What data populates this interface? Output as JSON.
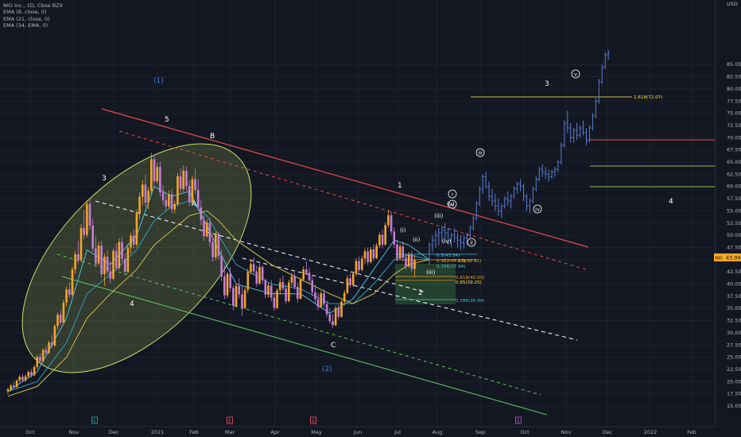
{
  "legend": {
    "title": "NIO Inc., 1D, Cboe BZX",
    "ema_lines": [
      "EMA (8, close, 0)",
      "EMA (21, close, 0)",
      "EMA (34, EMA, 0)"
    ]
  },
  "currency": "USD",
  "price_badge": "43.99",
  "symbol_badge": "NIO",
  "colors": {
    "background": "#131722",
    "candle_up": "#f5a623",
    "candle_down": "#c77dd9",
    "candle_late": "#5b7fd6",
    "ema_fast": "#4fc3d9",
    "ema_slow": "#c9c04a",
    "ellipse": "#c8e06a",
    "red_line": "#e84b4b",
    "white_dash": "#ffffff",
    "green_line": "#5cc35c"
  },
  "chart_data": {
    "type": "candlestick",
    "title": "NIO Inc., 1D, Cboe BZX",
    "y_axis": {
      "min": 13,
      "max": 88,
      "ticks": [
        15,
        17.5,
        20,
        22.5,
        25,
        27.5,
        30,
        32.5,
        35,
        37.5,
        40,
        42.5,
        45,
        47.5,
        50,
        52.5,
        55,
        57.5,
        60,
        62.5,
        65,
        67.5,
        70,
        72.5,
        75,
        77.5,
        80,
        82.5,
        85
      ]
    },
    "x_axis": {
      "ticks": [
        "Oct",
        "Nov",
        "Dec",
        "2021",
        "Feb",
        "Mar",
        "Apr",
        "May",
        "Jun",
        "Jul",
        "Aug",
        "Sep",
        "Oct",
        "Nov",
        "Dec",
        "2022",
        "Feb"
      ]
    },
    "candles": [
      [
        18,
        18.8,
        17.4,
        18.4
      ],
      [
        18.4,
        19.6,
        18,
        19.2
      ],
      [
        19.2,
        20,
        18.6,
        18.9
      ],
      [
        18.9,
        20.5,
        18.5,
        20.2
      ],
      [
        20.2,
        21.4,
        19.8,
        21
      ],
      [
        21,
        21.6,
        19.9,
        20.3
      ],
      [
        20.3,
        21.5,
        20,
        21.1
      ],
      [
        21.1,
        22.3,
        20.8,
        22
      ],
      [
        22,
        22.6,
        20.9,
        21.3
      ],
      [
        21.3,
        23.4,
        21.1,
        23
      ],
      [
        23,
        25.5,
        22.6,
        25.1
      ],
      [
        25.1,
        25.8,
        23.8,
        24.2
      ],
      [
        24.2,
        26.9,
        24,
        26.5
      ],
      [
        26.5,
        27.3,
        25.4,
        25.9
      ],
      [
        25.9,
        28.4,
        25.6,
        28
      ],
      [
        28,
        29.5,
        26.9,
        27.4
      ],
      [
        27.4,
        31.8,
        27.1,
        31.4
      ],
      [
        31.4,
        34.2,
        30.6,
        33.7
      ],
      [
        33.7,
        34.6,
        31.6,
        32.1
      ],
      [
        32.1,
        36.8,
        31.9,
        36.2
      ],
      [
        36.2,
        39.5,
        35.4,
        38.9
      ],
      [
        38.9,
        40.4,
        37.2,
        37.8
      ],
      [
        37.8,
        43.6,
        37.5,
        43
      ],
      [
        43,
        46.8,
        42.1,
        46.1
      ],
      [
        46.1,
        48.9,
        44.2,
        44.9
      ],
      [
        44.9,
        52.3,
        44.5,
        51.5
      ],
      [
        51.5,
        55.1,
        49.2,
        50.1
      ],
      [
        50.1,
        57.2,
        49.6,
        56.4
      ],
      [
        56.4,
        57.5,
        51.1,
        52
      ],
      [
        52,
        53.4,
        46.6,
        47.3
      ],
      [
        47.3,
        49.8,
        43.4,
        44.2
      ],
      [
        44.2,
        48.7,
        43.8,
        47.9
      ],
      [
        47.9,
        48.9,
        41.3,
        42
      ],
      [
        42,
        46.3,
        39.6,
        45.6
      ],
      [
        45.6,
        46.9,
        41.9,
        42.6
      ],
      [
        42.6,
        44.6,
        40.1,
        41.1
      ],
      [
        41.1,
        47.3,
        40.8,
        46.8
      ],
      [
        46.8,
        48.3,
        42.7,
        43.3
      ],
      [
        43.3,
        49.4,
        42.8,
        48.6
      ],
      [
        48.6,
        49.6,
        44.5,
        45.2
      ],
      [
        45.2,
        46.3,
        41.8,
        42.5
      ],
      [
        42.5,
        48.3,
        42.2,
        47.5
      ],
      [
        47.5,
        50.6,
        46.2,
        49.9
      ],
      [
        49.9,
        51.3,
        47.3,
        48.1
      ],
      [
        48.1,
        55.3,
        47.5,
        54.6
      ],
      [
        54.6,
        58.8,
        53.3,
        57.9
      ],
      [
        57.9,
        61.3,
        56.1,
        60.4
      ],
      [
        60.4,
        62.4,
        55.8,
        56.7
      ],
      [
        56.7,
        59.8,
        55.4,
        59.1
      ],
      [
        59.1,
        66.9,
        58.5,
        65.6
      ],
      [
        65.6,
        66.5,
        60.2,
        61.1
      ],
      [
        61.1,
        64.9,
        60.6,
        64
      ],
      [
        64,
        65.1,
        57.9,
        58.8
      ],
      [
        58.8,
        60.3,
        56.3,
        57.2
      ],
      [
        57.2,
        58.6,
        55.1,
        55.9
      ],
      [
        55.9,
        59.2,
        55.4,
        58.4
      ],
      [
        58.4,
        59.5,
        54.5,
        55.3
      ],
      [
        55.3,
        57.1,
        54.4,
        56.4
      ],
      [
        56.4,
        62.8,
        55.9,
        62.1
      ],
      [
        62.1,
        63.7,
        58.7,
        59.5
      ],
      [
        59.5,
        64.3,
        58.9,
        63.2
      ],
      [
        63.2,
        64.1,
        59.2,
        60.1
      ],
      [
        60.1,
        61.3,
        55.9,
        56.8
      ],
      [
        56.8,
        62.2,
        56.2,
        61.5
      ],
      [
        61.5,
        63.6,
        58.6,
        59.3
      ],
      [
        59.3,
        61.5,
        55.1,
        55.7
      ],
      [
        55.7,
        57.2,
        52.1,
        53.1
      ],
      [
        53.1,
        54.1,
        48.9,
        49.8
      ],
      [
        49.8,
        53.2,
        49.5,
        52.6
      ],
      [
        52.6,
        53.6,
        47.7,
        48.6
      ],
      [
        48.6,
        49.8,
        44.6,
        45.5
      ],
      [
        45.5,
        50.8,
        44.9,
        50.3
      ],
      [
        50.3,
        50.7,
        45.1,
        45.8
      ],
      [
        45.8,
        47.1,
        40.6,
        41.6
      ],
      [
        41.6,
        43.8,
        36.9,
        37.7
      ],
      [
        37.7,
        42.5,
        37.1,
        42.1
      ],
      [
        42.1,
        43.4,
        38.4,
        39.2
      ],
      [
        39.2,
        39.8,
        34.6,
        35.5
      ],
      [
        35.5,
        40.1,
        35.2,
        39.6
      ],
      [
        39.6,
        41.2,
        37.1,
        37.9
      ],
      [
        37.9,
        39.6,
        33.5,
        35.1
      ],
      [
        35.1,
        39.4,
        34.8,
        38.8
      ],
      [
        38.8,
        43.2,
        38.1,
        42.5
      ],
      [
        42.5,
        45,
        41.9,
        44.1
      ],
      [
        44.1,
        45.4,
        41.8,
        42.6
      ],
      [
        42.6,
        43.8,
        39.4,
        40.1
      ],
      [
        40.1,
        44.2,
        39.8,
        43.5
      ],
      [
        43.5,
        43.9,
        40,
        40.8
      ],
      [
        40.8,
        41.2,
        37.1,
        37.8
      ],
      [
        37.8,
        40.3,
        37.2,
        39.7
      ],
      [
        39.7,
        40.8,
        36.4,
        37.2
      ],
      [
        37.2,
        38.4,
        34.5,
        35.1
      ],
      [
        35.1,
        39.1,
        34.9,
        38.7
      ],
      [
        38.7,
        41.2,
        37.9,
        40.4
      ],
      [
        40.4,
        41.7,
        38.5,
        39.1
      ],
      [
        39.1,
        39.9,
        35.9,
        36.5
      ],
      [
        36.5,
        40.9,
        36.2,
        40.3
      ],
      [
        40.3,
        42.3,
        39.5,
        41.6
      ],
      [
        41.6,
        42.4,
        38.9,
        39.4
      ],
      [
        39.4,
        40.3,
        36.2,
        37
      ],
      [
        37,
        41.4,
        36.8,
        40.9
      ],
      [
        40.9,
        43.6,
        40.5,
        43
      ],
      [
        43,
        44.7,
        41.8,
        42.3
      ],
      [
        42.3,
        43.3,
        40.3,
        40.8
      ],
      [
        40.8,
        41.6,
        37.6,
        38.3
      ],
      [
        38.3,
        39.8,
        36.1,
        36.9
      ],
      [
        36.9,
        38.2,
        34.6,
        35.3
      ],
      [
        35.3,
        38.6,
        35.1,
        38.1
      ],
      [
        38.1,
        38.9,
        35.3,
        35.9
      ],
      [
        35.9,
        36.5,
        33.2,
        33.8
      ],
      [
        33.8,
        35.1,
        31.9,
        32.4
      ],
      [
        32.4,
        33.9,
        31,
        31.6
      ],
      [
        31.6,
        35.6,
        31.3,
        35.1
      ],
      [
        35.1,
        35.8,
        32.8,
        33.3
      ],
      [
        33.3,
        36.8,
        33.1,
        36.4
      ],
      [
        36.4,
        38.7,
        35.6,
        38.2
      ],
      [
        38.2,
        41.8,
        37.9,
        41.2
      ],
      [
        41.2,
        42.2,
        39.3,
        39.8
      ],
      [
        39.8,
        42.6,
        39.4,
        42.1
      ],
      [
        42.1,
        45.3,
        41.6,
        44.7
      ],
      [
        44.7,
        45.6,
        42.3,
        42.9
      ],
      [
        42.9,
        45.8,
        42.6,
        45.2
      ],
      [
        45.2,
        47.3,
        44.1,
        46.7
      ],
      [
        46.7,
        47.5,
        43.9,
        44.5
      ],
      [
        44.5,
        47.6,
        44.2,
        47.1
      ],
      [
        47.1,
        48.2,
        44.8,
        45.3
      ],
      [
        45.3,
        48.4,
        45.1,
        47.9
      ],
      [
        47.9,
        50.6,
        47.4,
        50.1
      ],
      [
        50.1,
        51.2,
        47.3,
        48.1
      ],
      [
        48.1,
        52.6,
        47.8,
        52.1
      ],
      [
        52.1,
        55.2,
        51.5,
        54.1
      ],
      [
        54.1,
        54.8,
        50.1,
        50.8
      ],
      [
        50.8,
        51.6,
        47.4,
        48.1
      ],
      [
        48.1,
        49,
        44.7,
        45.3
      ],
      [
        45.3,
        48.3,
        44.9,
        47.7
      ],
      [
        47.7,
        48.7,
        44.6,
        45.4
      ],
      [
        45.4,
        46.1,
        42.9,
        43.6
      ],
      [
        43.6,
        46.6,
        43.3,
        46
      ],
      [
        46,
        46.8,
        42.5,
        43.1
      ],
      [
        43.1,
        45.9,
        41.4,
        44.9
      ]
    ],
    "projection_bars": [
      [
        44.9,
        48.5,
        44,
        48
      ],
      [
        48,
        50,
        46.5,
        49
      ],
      [
        49,
        51,
        47.5,
        50
      ],
      [
        50,
        51.5,
        48,
        50.5
      ],
      [
        50.5,
        52,
        48.5,
        51
      ],
      [
        51,
        52.5,
        49,
        50.5
      ],
      [
        50.5,
        51.5,
        48,
        49
      ],
      [
        49,
        50.5,
        47.5,
        50
      ],
      [
        50,
        51.5,
        48.5,
        49.5
      ],
      [
        49.5,
        50.5,
        47.5,
        49
      ],
      [
        49,
        50,
        47,
        48.5
      ],
      [
        48.5,
        50,
        47.2,
        49.5
      ],
      [
        49.5,
        50.5,
        48,
        50
      ],
      [
        50,
        52,
        49.5,
        51.5
      ],
      [
        51.5,
        54,
        51,
        53.5
      ],
      [
        53.5,
        57,
        53,
        56.5
      ],
      [
        56.5,
        60,
        56,
        59.5
      ],
      [
        59.5,
        62.5,
        58.5,
        62
      ],
      [
        62,
        63,
        59.5,
        60
      ],
      [
        60,
        61,
        57,
        58
      ],
      [
        58,
        59.5,
        56,
        57
      ],
      [
        57,
        58.5,
        55,
        56
      ],
      [
        56,
        57.5,
        54,
        55
      ],
      [
        55,
        56.5,
        53.5,
        56
      ],
      [
        56,
        58,
        55.5,
        57.5
      ],
      [
        57.5,
        59,
        56,
        57
      ],
      [
        57,
        58.5,
        55.5,
        58
      ],
      [
        58,
        60,
        57.5,
        59.5
      ],
      [
        59.5,
        61,
        58.5,
        60.5
      ],
      [
        60.5,
        61.5,
        59,
        60
      ],
      [
        60,
        60.5,
        57,
        58
      ],
      [
        58,
        58.5,
        55,
        56
      ],
      [
        56,
        57.5,
        54.5,
        57
      ],
      [
        57,
        60,
        56.5,
        59.5
      ],
      [
        59.5,
        62,
        59,
        61.5
      ],
      [
        61.5,
        64,
        61,
        63.5
      ],
      [
        63.5,
        64.5,
        62,
        63
      ],
      [
        63,
        64,
        61.5,
        62.5
      ],
      [
        62.5,
        63.5,
        61,
        62
      ],
      [
        62,
        63.5,
        61.5,
        63
      ],
      [
        63,
        64,
        62,
        63.5
      ],
      [
        63.5,
        65.5,
        63,
        65
      ],
      [
        65,
        69,
        64.5,
        68.5
      ],
      [
        68.5,
        73.5,
        68,
        73
      ],
      [
        73,
        75.5,
        71,
        72
      ],
      [
        72,
        73,
        69,
        70
      ],
      [
        70,
        72,
        69,
        71.5
      ],
      [
        71.5,
        73,
        69.5,
        70.5
      ],
      [
        70.5,
        72.5,
        70,
        72
      ],
      [
        72,
        73.5,
        70.5,
        71
      ],
      [
        71,
        72,
        68.5,
        69.5
      ],
      [
        69.5,
        72.5,
        69,
        72
      ],
      [
        72,
        75,
        71.5,
        74.5
      ],
      [
        74.5,
        78,
        74,
        77.5
      ],
      [
        77.5,
        82,
        77,
        81.5
      ],
      [
        81.5,
        85,
        81,
        84.5
      ],
      [
        84.5,
        87.5,
        84,
        87
      ],
      [
        87,
        88,
        86,
        87.5
      ]
    ],
    "ema": [
      {
        "name": "EMA (8, close, 0)",
        "points": [
          [
            0,
            18
          ],
          [
            10,
            22
          ],
          [
            20,
            33
          ],
          [
            27,
            47
          ],
          [
            35,
            44
          ],
          [
            44,
            50
          ],
          [
            50,
            60
          ],
          [
            56,
            58
          ],
          [
            62,
            59
          ],
          [
            68,
            52
          ],
          [
            72,
            47
          ],
          [
            78,
            40
          ],
          [
            90,
            38
          ],
          [
            100,
            38
          ],
          [
            110,
            34
          ],
          [
            118,
            37
          ],
          [
            125,
            43
          ],
          [
            132,
            49
          ],
          [
            137,
            48
          ],
          [
            144,
            45
          ]
        ]
      },
      {
        "name": "EMA (21, close, 0)",
        "points": [
          [
            0,
            18
          ],
          [
            10,
            20
          ],
          [
            20,
            28
          ],
          [
            27,
            38
          ],
          [
            35,
            42
          ],
          [
            44,
            47
          ],
          [
            50,
            53
          ],
          [
            56,
            56
          ],
          [
            62,
            57
          ],
          [
            68,
            54
          ],
          [
            72,
            50
          ],
          [
            78,
            44
          ],
          [
            90,
            40
          ],
          [
            100,
            39
          ],
          [
            110,
            36
          ],
          [
            118,
            36
          ],
          [
            125,
            40
          ],
          [
            132,
            45
          ],
          [
            137,
            46
          ],
          [
            144,
            45
          ]
        ]
      },
      {
        "name": "EMA (34, EMA, 0)",
        "points": [
          [
            0,
            17
          ],
          [
            10,
            19
          ],
          [
            20,
            25
          ],
          [
            27,
            33
          ],
          [
            35,
            38
          ],
          [
            44,
            43
          ],
          [
            50,
            48
          ],
          [
            56,
            51
          ],
          [
            62,
            54
          ],
          [
            68,
            55
          ],
          [
            72,
            53
          ],
          [
            78,
            49
          ],
          [
            90,
            44
          ],
          [
            100,
            41
          ],
          [
            110,
            38
          ],
          [
            118,
            36
          ],
          [
            125,
            38
          ],
          [
            132,
            42
          ],
          [
            137,
            44
          ],
          [
            144,
            45
          ]
        ]
      }
    ],
    "wave_labels": {
      "roman_paren": [
        "(1)",
        "(2)"
      ],
      "minor": [
        "3",
        "4",
        "5",
        "A",
        "B",
        "C",
        "1",
        "2",
        "3",
        "4"
      ],
      "micro": [
        "(i)",
        "(ii)",
        "(iii)",
        "(iv)",
        "(v)",
        "(iii)",
        "(iv)",
        "(v)",
        "i",
        "ii",
        "iii",
        "iv",
        "v"
      ]
    },
    "fib_labels": [
      "0.5(43.34)",
      "0.382(45.11)",
      "0.5(42.91)",
      "0.786(37.94)",
      "0.618(40.03)",
      "0.65(39.25)",
      "0.786(35.94)",
      "1.618(72.07)"
    ],
    "right_markers": [
      "0",
      "0",
      "0"
    ],
    "bottom_markers": [
      "E",
      "E",
      "E",
      "E"
    ]
  }
}
